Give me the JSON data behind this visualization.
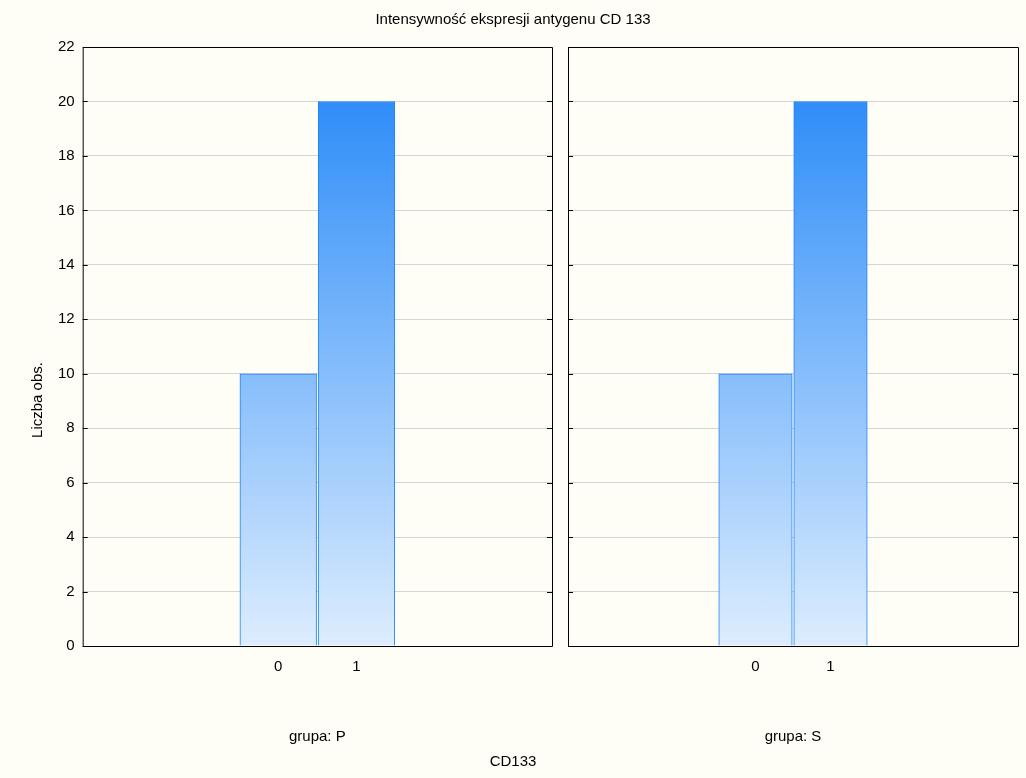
{
  "chart_data": [
    {
      "type": "bar",
      "title": "Intensywność ekspresji antygenu CD 133",
      "ylabel": "Liczba obs.",
      "xlabel": "grupa: P",
      "categories": [
        "0",
        "1"
      ],
      "values": [
        10,
        20
      ],
      "color": "#1e84f8",
      "ylim": [
        0,
        22
      ],
      "yticks": [
        0,
        2,
        4,
        6,
        8,
        10,
        12,
        14,
        16,
        18,
        20,
        22
      ],
      "grid": "y",
      "annotations": [
        "CD133"
      ]
    },
    {
      "type": "bar",
      "xlabel": "grupa: S",
      "categories": [
        "0",
        "1"
      ],
      "values": [
        10,
        20
      ],
      "color": "#1e84f8",
      "ylim": [
        0,
        22
      ],
      "yticks": [
        0,
        2,
        4,
        6,
        8,
        10,
        12,
        14,
        16,
        18,
        20,
        22
      ],
      "grid": "y",
      "tick_labels": "x"
    }
  ]
}
